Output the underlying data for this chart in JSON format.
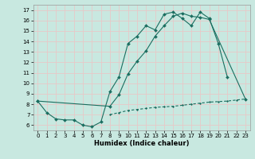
{
  "title": "",
  "xlabel": "Humidex (Indice chaleur)",
  "bg_color": "#c8e8e0",
  "grid_color": "#e8c8c8",
  "line_color": "#1a6e60",
  "xlim": [
    -0.5,
    23.5
  ],
  "ylim": [
    5.5,
    17.5
  ],
  "yticks": [
    6,
    7,
    8,
    9,
    10,
    11,
    12,
    13,
    14,
    15,
    16,
    17
  ],
  "xticks": [
    0,
    1,
    2,
    3,
    4,
    5,
    6,
    7,
    8,
    9,
    10,
    11,
    12,
    13,
    14,
    15,
    16,
    17,
    18,
    19,
    20,
    21,
    22,
    23
  ],
  "line1_x": [
    0,
    1,
    2,
    3,
    4,
    5,
    6,
    7,
    8,
    9,
    10,
    11,
    12,
    13,
    14,
    15,
    16,
    17,
    18,
    19,
    20,
    21
  ],
  "line1_y": [
    8.3,
    7.2,
    6.6,
    6.5,
    6.5,
    6.0,
    5.85,
    6.3,
    9.2,
    10.6,
    13.8,
    14.5,
    15.5,
    15.1,
    16.6,
    16.8,
    16.2,
    15.5,
    16.8,
    16.2,
    13.8,
    10.6
  ],
  "line2_x": [
    0,
    8,
    9,
    10,
    11,
    12,
    13,
    14,
    15,
    16,
    17,
    18,
    19,
    23
  ],
  "line2_y": [
    8.3,
    7.8,
    8.9,
    10.9,
    12.1,
    13.1,
    14.5,
    15.5,
    16.4,
    16.7,
    16.4,
    16.3,
    16.1,
    8.5
  ],
  "line3_x": [
    8,
    9,
    10,
    11,
    12,
    13,
    14,
    15,
    16,
    17,
    18,
    19,
    20,
    21,
    22,
    23
  ],
  "line3_y": [
    7.0,
    7.2,
    7.4,
    7.5,
    7.6,
    7.7,
    7.75,
    7.8,
    7.9,
    8.0,
    8.1,
    8.2,
    8.25,
    8.3,
    8.4,
    8.5
  ]
}
